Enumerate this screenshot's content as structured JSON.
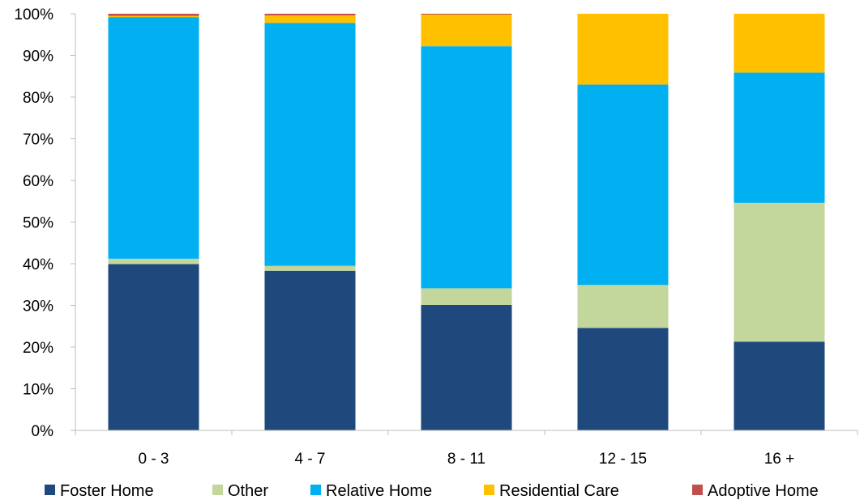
{
  "chart_data": {
    "type": "bar",
    "stacked": true,
    "percent": true,
    "categories": [
      "0 - 3",
      "4 - 7",
      "8 - 11",
      "12 - 15",
      "16 +"
    ],
    "y_tick_labels": [
      "0%",
      "10%",
      "20%",
      "30%",
      "40%",
      "50%",
      "60%",
      "70%",
      "80%",
      "90%",
      "100%"
    ],
    "ylim": [
      0,
      100
    ],
    "grid": false,
    "legend_position": "bottom",
    "series": [
      {
        "name": "Foster Home",
        "color": "#1f497d",
        "values": [
          39.9,
          38.3,
          30.1,
          24.6,
          21.3
        ]
      },
      {
        "name": "Other",
        "color": "#c3d69b",
        "values": [
          1.3,
          1.2,
          4.0,
          10.3,
          33.3
        ]
      },
      {
        "name": "Relative Home",
        "color": "#00b0f0",
        "values": [
          58.0,
          58.3,
          58.1,
          48.1,
          31.3
        ]
      },
      {
        "name": "Residential Care",
        "color": "#ffc000",
        "values": [
          0.3,
          1.8,
          7.6,
          17.0,
          14.1
        ]
      },
      {
        "name": "Adoptive Home",
        "color": "#c0504d",
        "values": [
          0.5,
          0.4,
          0.2,
          0.0,
          0.0
        ]
      }
    ]
  }
}
